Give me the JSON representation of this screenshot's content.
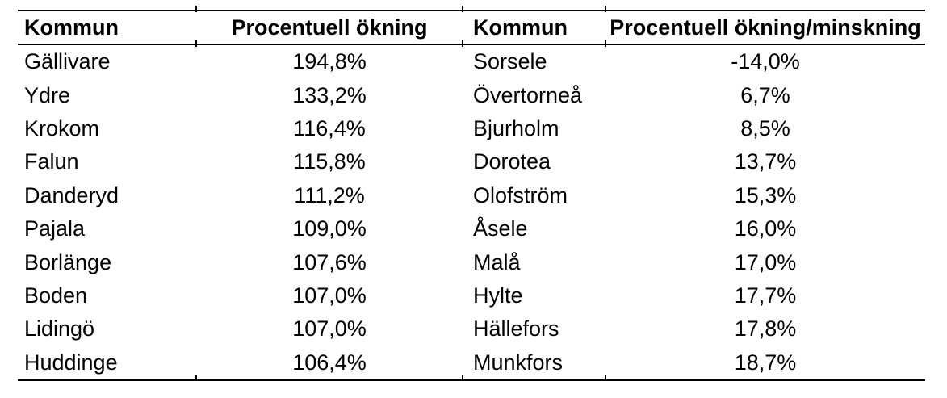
{
  "page": {
    "background_color": "#ffffff",
    "text_color": "#000000",
    "rule_color": "#000000"
  },
  "table": {
    "headers": [
      "Kommun",
      "Procentuell ökning",
      "Kommun",
      "Procentuell ökning/minskning"
    ],
    "rows": [
      [
        "Gällivare",
        "194,8%",
        "Sorsele",
        "-14,0%"
      ],
      [
        "Ydre",
        "133,2%",
        "Övertorneå",
        "6,7%"
      ],
      [
        "Krokom",
        "116,4%",
        "Bjurholm",
        "8,5%"
      ],
      [
        "Falun",
        "115,8%",
        "Dorotea",
        "13,7%"
      ],
      [
        "Danderyd",
        "111,2%",
        "Olofström",
        "15,3%"
      ],
      [
        "Pajala",
        "109,0%",
        "Åsele",
        "16,0%"
      ],
      [
        "Borlänge",
        "107,6%",
        "Malå",
        "17,0%"
      ],
      [
        "Boden",
        "107,0%",
        "Hylte",
        "17,7%"
      ],
      [
        "Lidingö",
        "107,0%",
        "Hällefors",
        "17,8%"
      ],
      [
        "Huddinge",
        "106,4%",
        "Munkfors",
        "18,7%"
      ]
    ]
  },
  "chart_data": {
    "type": "table",
    "columns": [
      "Kommun",
      "Procentuell ökning",
      "Kommun",
      "Procentuell ökning/minskning"
    ],
    "rows": [
      [
        "Gällivare",
        "194,8%",
        "Sorsele",
        "-14,0%"
      ],
      [
        "Ydre",
        "133,2%",
        "Övertorneå",
        "6,7%"
      ],
      [
        "Krokom",
        "116,4%",
        "Bjurholm",
        "8,5%"
      ],
      [
        "Falun",
        "115,8%",
        "Dorotea",
        "13,7%"
      ],
      [
        "Danderyd",
        "111,2%",
        "Olofström",
        "15,3%"
      ],
      [
        "Pajala",
        "109,0%",
        "Åsele",
        "16,0%"
      ],
      [
        "Borlänge",
        "107,6%",
        "Malå",
        "17,0%"
      ],
      [
        "Boden",
        "107,0%",
        "Hylte",
        "17,7%"
      ],
      [
        "Lidingö",
        "107,0%",
        "Hällefors",
        "17,8%"
      ],
      [
        "Huddinge",
        "106,4%",
        "Munkfors",
        "18,7%"
      ]
    ]
  }
}
